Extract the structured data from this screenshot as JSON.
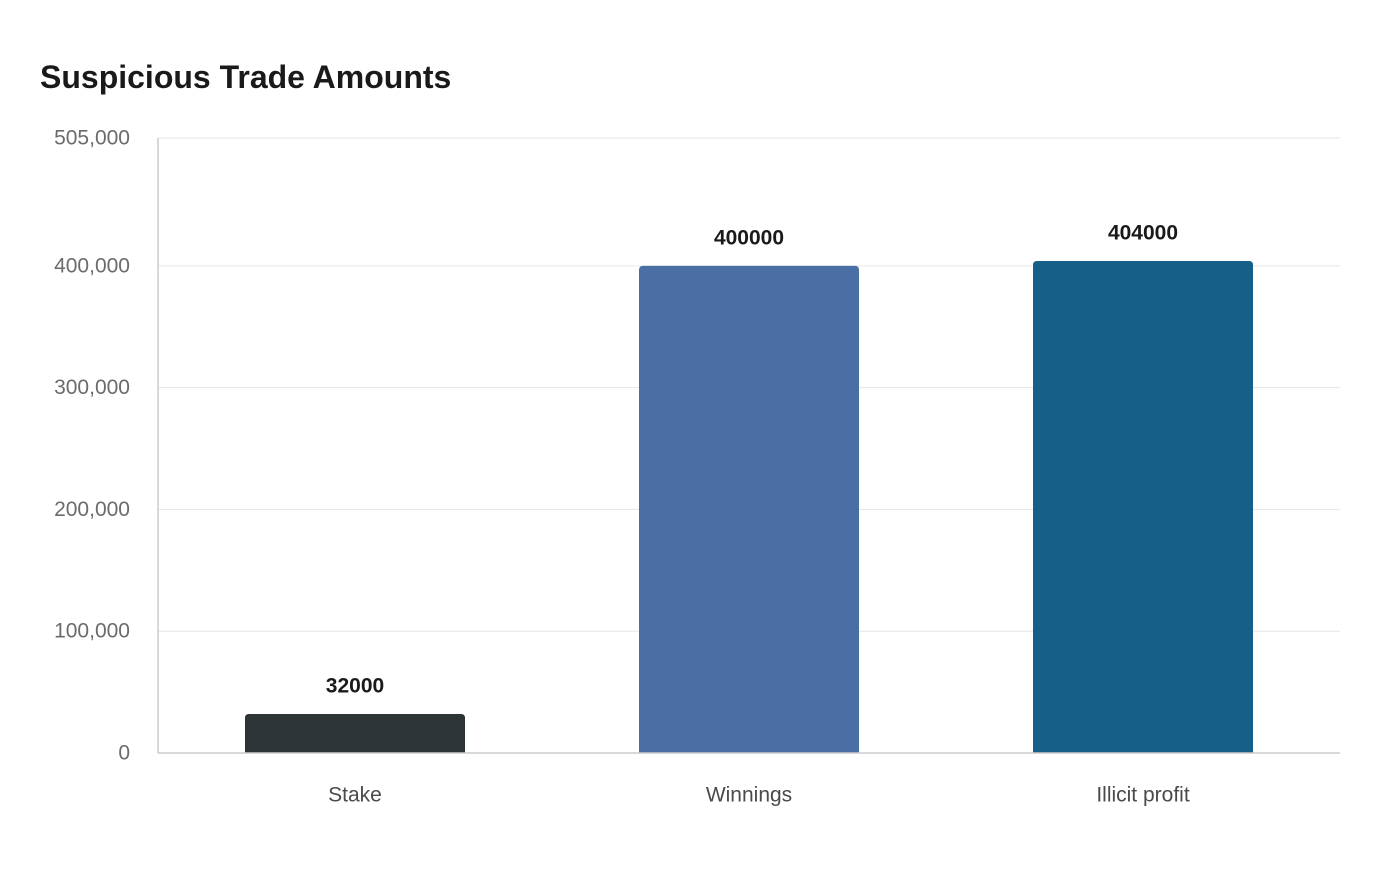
{
  "chart_data": {
    "type": "bar",
    "title": "Suspicious Trade Amounts",
    "xlabel": "",
    "ylabel": "",
    "categories": [
      "Stake",
      "Winnings",
      "Illicit profit"
    ],
    "values": [
      32000,
      400000,
      404000
    ],
    "data_labels": [
      "32000",
      "400000",
      "404000"
    ],
    "colors": [
      "#2d3436",
      "#4a6fa5",
      "#166088"
    ],
    "ylim": [
      0,
      505000
    ],
    "y_ticks": [
      0,
      100000,
      200000,
      300000,
      400000,
      505000
    ],
    "y_tick_labels": [
      "0",
      "100,000",
      "200,000",
      "300,000",
      "400,000",
      "505,000"
    ],
    "grid": true,
    "legend": "none"
  }
}
